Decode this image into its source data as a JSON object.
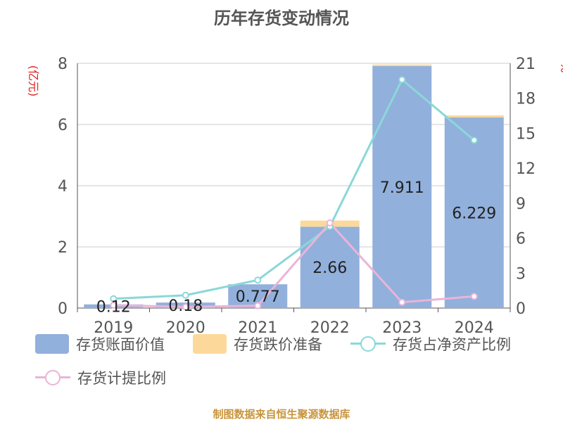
{
  "title": "历年存货变动情况",
  "footer": "制图数据来自恒生聚源数据库",
  "left_axis": {
    "unit": "(亿元)",
    "ticks": [
      "0",
      "2",
      "4",
      "6",
      "8"
    ]
  },
  "right_axis": {
    "unit": "%",
    "ticks": [
      "0",
      "3",
      "6",
      "9",
      "12",
      "15",
      "18",
      "21"
    ]
  },
  "legend": [
    {
      "label": "存货账面价值",
      "color": "#92b0dc",
      "type": "bar"
    },
    {
      "label": "存货跌价准备",
      "color": "#fcd99a",
      "type": "bar"
    },
    {
      "label": "存货占净资产比例",
      "color": "#8ad8d8",
      "type": "line"
    },
    {
      "label": "存货计提比例",
      "color": "#eab4d8",
      "type": "line"
    }
  ],
  "chart_data": {
    "type": "bar",
    "title": "历年存货变动情况",
    "categories": [
      "2019",
      "2020",
      "2021",
      "2022",
      "2023",
      "2024"
    ],
    "series": [
      {
        "name": "存货账面价值",
        "axis": "left",
        "type": "bar",
        "stack": "inv",
        "values": [
          0.12,
          0.18,
          0.777,
          2.66,
          7.911,
          6.229
        ],
        "labels": [
          "0.12",
          "0.18",
          "0.777",
          "2.66",
          "7.911",
          "6.229"
        ]
      },
      {
        "name": "存货跌价准备",
        "axis": "left",
        "type": "bar",
        "stack": "inv",
        "values": [
          0.0,
          0.0,
          0.0,
          0.2,
          0.05,
          0.07
        ]
      },
      {
        "name": "存货占净资产比例",
        "axis": "right",
        "type": "line",
        "values": [
          0.8,
          1.1,
          2.4,
          7.0,
          19.6,
          14.4
        ]
      },
      {
        "name": "存货计提比例",
        "axis": "right",
        "type": "line",
        "values": [
          0.25,
          0.1,
          0.2,
          7.3,
          0.5,
          1.0
        ]
      }
    ],
    "ylabel": "(亿元)",
    "y2label": "%",
    "ylim": [
      0,
      8
    ],
    "y2lim": [
      0,
      21
    ],
    "grid": true,
    "legend_position": "bottom"
  }
}
